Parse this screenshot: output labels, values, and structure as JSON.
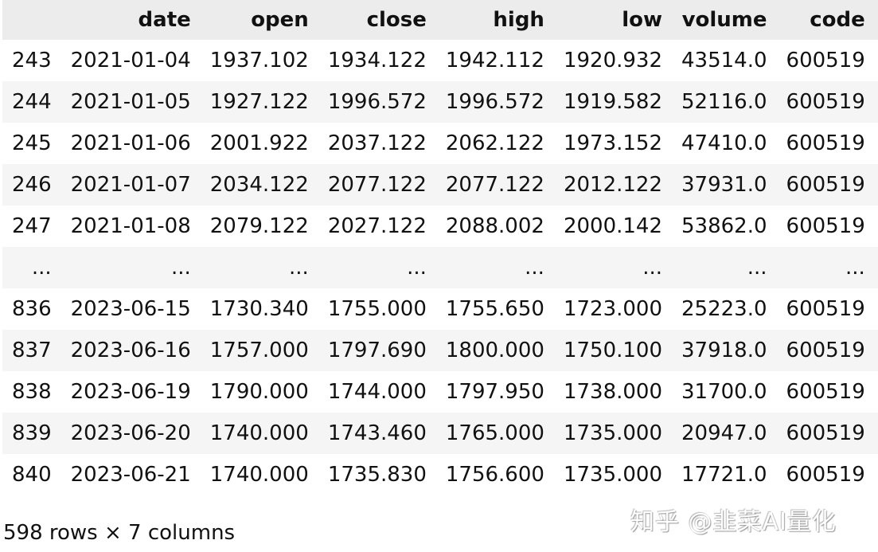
{
  "table": {
    "columns": [
      "",
      "date",
      "open",
      "close",
      "high",
      "low",
      "volume",
      "code"
    ],
    "rows": [
      [
        "243",
        "2021-01-04",
        "1937.102",
        "1934.122",
        "1942.112",
        "1920.932",
        "43514.0",
        "600519"
      ],
      [
        "244",
        "2021-01-05",
        "1927.122",
        "1996.572",
        "1996.572",
        "1919.582",
        "52116.0",
        "600519"
      ],
      [
        "245",
        "2021-01-06",
        "2001.922",
        "2037.122",
        "2062.122",
        "1973.152",
        "47410.0",
        "600519"
      ],
      [
        "246",
        "2021-01-07",
        "2034.122",
        "2077.122",
        "2077.122",
        "2012.122",
        "37931.0",
        "600519"
      ],
      [
        "247",
        "2021-01-08",
        "2079.122",
        "2027.122",
        "2088.002",
        "2000.142",
        "53862.0",
        "600519"
      ],
      [
        "...",
        "...",
        "...",
        "...",
        "...",
        "...",
        "...",
        "..."
      ],
      [
        "836",
        "2023-06-15",
        "1730.340",
        "1755.000",
        "1755.650",
        "1723.000",
        "25223.0",
        "600519"
      ],
      [
        "837",
        "2023-06-16",
        "1757.000",
        "1797.690",
        "1800.000",
        "1750.100",
        "37918.0",
        "600519"
      ],
      [
        "838",
        "2023-06-19",
        "1790.000",
        "1744.000",
        "1797.950",
        "1738.000",
        "31700.0",
        "600519"
      ],
      [
        "839",
        "2023-06-20",
        "1740.000",
        "1743.460",
        "1765.000",
        "1735.000",
        "20947.0",
        "600519"
      ],
      [
        "840",
        "2023-06-21",
        "1740.000",
        "1735.830",
        "1756.600",
        "1735.000",
        "17721.0",
        "600519"
      ]
    ]
  },
  "footer": "598 rows × 7 columns",
  "watermark": "知乎 @韭菜AI量化"
}
